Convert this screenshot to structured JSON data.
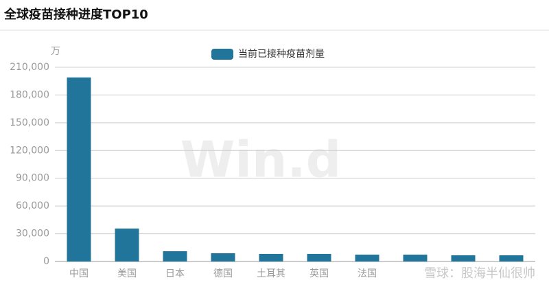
{
  "chart_data": {
    "type": "bar",
    "title": "全球疫苗接种进度TOP10",
    "y_unit": "万",
    "categories": [
      "中国",
      "美国",
      "日本",
      "德国",
      "土耳其",
      "英国",
      "法国",
      null,
      null,
      null
    ],
    "series": [
      {
        "name": "当前已接种疫苗剂量",
        "color": "#21759b",
        "values": [
          199000,
          35600,
          11100,
          8900,
          8200,
          8200,
          7400,
          7400,
          6700,
          6700
        ]
      }
    ],
    "ylim": [
      0,
      210000
    ],
    "yticks": [
      0,
      {
        "value": 30000,
        "label": "30,000"
      },
      {
        "value": 60000,
        "label": "60,000"
      },
      {
        "value": 90000,
        "label": "90,000"
      },
      {
        "value": 120000,
        "label": "120,000"
      },
      {
        "value": 150000,
        "label": "150,000"
      },
      {
        "value": 180000,
        "label": "180,000"
      },
      {
        "value": 210000,
        "label": "210,000"
      }
    ],
    "grid": true,
    "watermarks": [
      "Win.d",
      "雪球：股海半仙很帅"
    ]
  }
}
